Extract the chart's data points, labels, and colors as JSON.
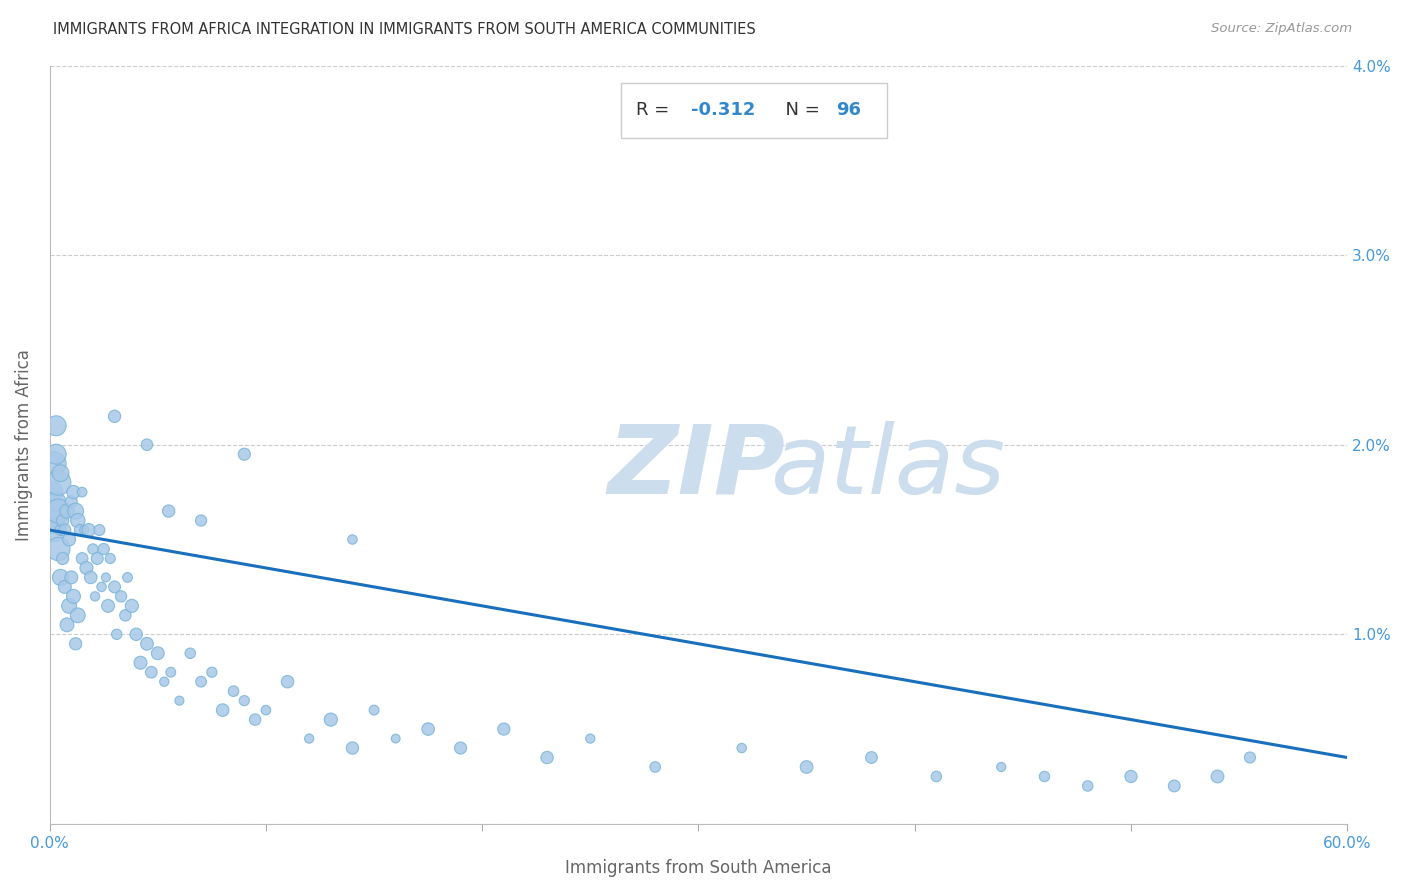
{
  "title": "IMMIGRANTS FROM AFRICA INTEGRATION IN IMMIGRANTS FROM SOUTH AMERICA COMMUNITIES",
  "source": "Source: ZipAtlas.com",
  "xlabel": "Immigrants from South America",
  "ylabel": "Immigrants from Africa",
  "xlim": [
    0,
    0.6
  ],
  "ylim": [
    0,
    0.04
  ],
  "R": -0.312,
  "N": 96,
  "scatter_color": "#a8c8e8",
  "scatter_edgecolor": "#7ab4d8",
  "line_color": "#1a6fbd",
  "line_start_y": 0.0155,
  "line_end_y": 0.0035,
  "watermark_zip": "ZIP",
  "watermark_atlas": "atlas",
  "watermark_color": "#ccdded",
  "title_color": "#333333",
  "axis_label_color": "#666666",
  "tick_label_color": "#4499dd",
  "stat_R_label_color": "#333333",
  "stat_value_color": "#3388cc",
  "scatter_points_x": [
    0.001,
    0.001,
    0.002,
    0.002,
    0.003,
    0.003,
    0.003,
    0.004,
    0.004,
    0.004,
    0.005,
    0.005,
    0.005,
    0.006,
    0.006,
    0.007,
    0.007,
    0.008,
    0.008,
    0.009,
    0.009,
    0.01,
    0.01,
    0.011,
    0.011,
    0.012,
    0.012,
    0.013,
    0.013,
    0.014,
    0.015,
    0.015,
    0.016,
    0.017,
    0.018,
    0.019,
    0.02,
    0.021,
    0.022,
    0.023,
    0.024,
    0.025,
    0.026,
    0.027,
    0.028,
    0.03,
    0.031,
    0.033,
    0.035,
    0.036,
    0.038,
    0.04,
    0.042,
    0.045,
    0.047,
    0.05,
    0.053,
    0.056,
    0.06,
    0.065,
    0.07,
    0.075,
    0.08,
    0.085,
    0.09,
    0.095,
    0.1,
    0.11,
    0.12,
    0.13,
    0.14,
    0.15,
    0.16,
    0.175,
    0.19,
    0.21,
    0.23,
    0.25,
    0.28,
    0.32,
    0.35,
    0.38,
    0.41,
    0.44,
    0.46,
    0.48,
    0.5,
    0.52,
    0.54,
    0.555,
    0.14,
    0.09,
    0.03,
    0.045,
    0.055,
    0.07
  ],
  "scatter_points_y": [
    0.0175,
    0.016,
    0.019,
    0.0155,
    0.021,
    0.0195,
    0.017,
    0.018,
    0.0145,
    0.0165,
    0.0155,
    0.0185,
    0.013,
    0.016,
    0.014,
    0.0155,
    0.0125,
    0.0165,
    0.0105,
    0.015,
    0.0115,
    0.017,
    0.013,
    0.0175,
    0.012,
    0.0165,
    0.0095,
    0.016,
    0.011,
    0.0155,
    0.014,
    0.0175,
    0.0155,
    0.0135,
    0.0155,
    0.013,
    0.0145,
    0.012,
    0.014,
    0.0155,
    0.0125,
    0.0145,
    0.013,
    0.0115,
    0.014,
    0.0125,
    0.01,
    0.012,
    0.011,
    0.013,
    0.0115,
    0.01,
    0.0085,
    0.0095,
    0.008,
    0.009,
    0.0075,
    0.008,
    0.0065,
    0.009,
    0.0075,
    0.008,
    0.006,
    0.007,
    0.0065,
    0.0055,
    0.006,
    0.0075,
    0.0045,
    0.0055,
    0.004,
    0.006,
    0.0045,
    0.005,
    0.004,
    0.005,
    0.0035,
    0.0045,
    0.003,
    0.004,
    0.003,
    0.0035,
    0.0025,
    0.003,
    0.0025,
    0.002,
    0.0025,
    0.002,
    0.0025,
    0.0035,
    0.015,
    0.0195,
    0.0215,
    0.02,
    0.0165,
    0.016
  ],
  "scatter_size_base": 55
}
